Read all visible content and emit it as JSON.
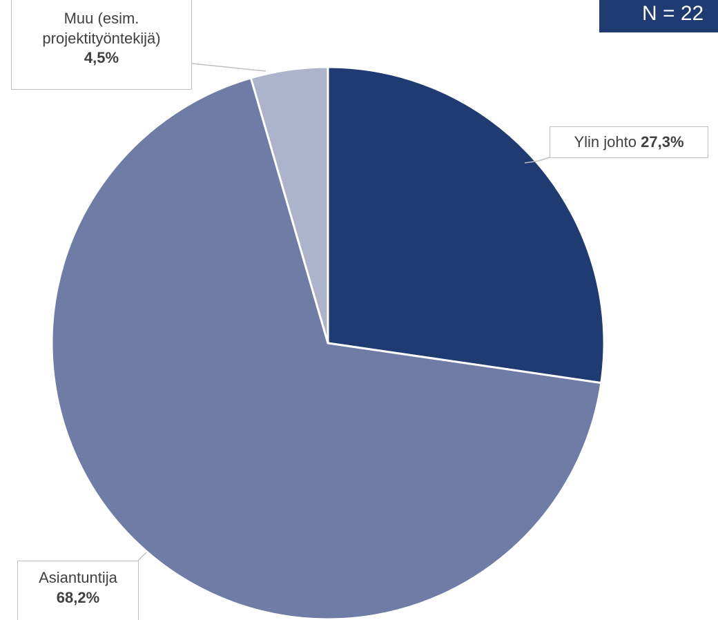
{
  "chart_data": {
    "type": "pie",
    "categories": [
      "Ylin johto",
      "Asiantuntija",
      "Muu (esim. projektityöntekijä)"
    ],
    "values": [
      27.3,
      68.2,
      4.5
    ],
    "value_labels": [
      "27,3%",
      "68,2%",
      "4,5%"
    ],
    "colors": [
      "#1f3b71",
      "#6e7ca6",
      "#adb3cb"
    ],
    "annotation": "N = 22"
  }
}
